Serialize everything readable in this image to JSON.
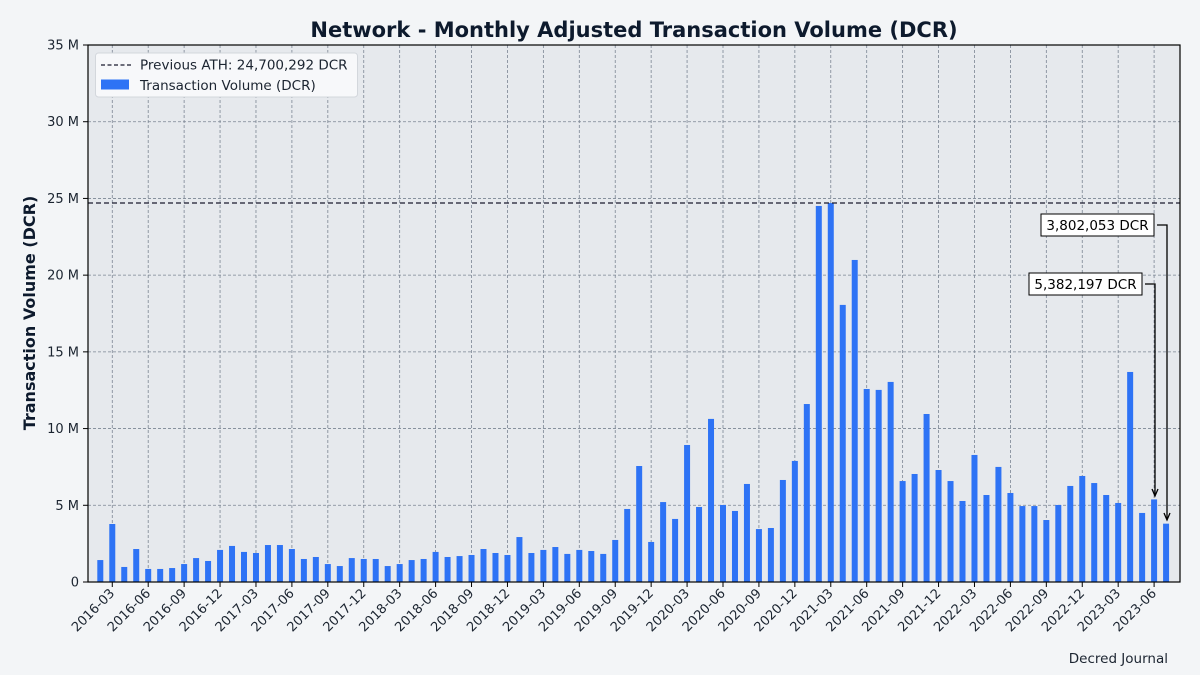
{
  "chart_data": {
    "type": "bar",
    "title": "Network - Monthly Adjusted Transaction Volume (DCR)",
    "xlabel": "",
    "ylabel": "Transaction Volume (DCR)",
    "ylim": [
      0,
      35000000
    ],
    "y_ticks": [
      "0",
      "5 M",
      "10 M",
      "15 M",
      "20 M",
      "25 M",
      "30 M",
      "35 M"
    ],
    "grid": true,
    "legend_position": "upper left",
    "legend": [
      {
        "label": "Previous ATH: 24,700,292 DCR",
        "style": "dashed-line",
        "color": "#1a1a2e"
      },
      {
        "label": "Transaction Volume (DCR)",
        "style": "bar",
        "color": "#2e73f5"
      }
    ],
    "reference_line": {
      "label": "Previous ATH: 24,700,292 DCR",
      "value": 24700292
    },
    "x_tick_labels": [
      "2016-03",
      "2016-06",
      "2016-09",
      "2016-12",
      "2017-03",
      "2017-06",
      "2017-09",
      "2017-12",
      "2018-03",
      "2018-06",
      "2018-09",
      "2018-12",
      "2019-03",
      "2019-06",
      "2019-09",
      "2019-12",
      "2020-03",
      "2020-06",
      "2020-09",
      "2020-12",
      "2021-03",
      "2021-06",
      "2021-09",
      "2021-12",
      "2022-03",
      "2022-06",
      "2022-09",
      "2022-12",
      "2023-03",
      "2023-06"
    ],
    "categories": [
      "2016-02",
      "2016-03",
      "2016-04",
      "2016-05",
      "2016-06",
      "2016-07",
      "2016-08",
      "2016-09",
      "2016-10",
      "2016-11",
      "2016-12",
      "2017-01",
      "2017-02",
      "2017-03",
      "2017-04",
      "2017-05",
      "2017-06",
      "2017-07",
      "2017-08",
      "2017-09",
      "2017-10",
      "2017-11",
      "2017-12",
      "2018-01",
      "2018-02",
      "2018-03",
      "2018-04",
      "2018-05",
      "2018-06",
      "2018-07",
      "2018-08",
      "2018-09",
      "2018-10",
      "2018-11",
      "2018-12",
      "2019-01",
      "2019-02",
      "2019-03",
      "2019-04",
      "2019-05",
      "2019-06",
      "2019-07",
      "2019-08",
      "2019-09",
      "2019-10",
      "2019-11",
      "2019-12",
      "2020-01",
      "2020-02",
      "2020-03",
      "2020-04",
      "2020-05",
      "2020-06",
      "2020-07",
      "2020-08",
      "2020-09",
      "2020-10",
      "2020-11",
      "2020-12",
      "2021-01",
      "2021-02",
      "2021-03",
      "2021-04",
      "2021-05",
      "2021-06",
      "2021-07",
      "2021-08",
      "2021-09",
      "2021-10",
      "2021-11",
      "2021-12",
      "2022-01",
      "2022-02",
      "2022-03",
      "2022-04",
      "2022-05",
      "2022-06",
      "2022-07",
      "2022-08",
      "2022-09",
      "2022-10",
      "2022-11",
      "2022-12",
      "2023-01",
      "2023-02",
      "2023-03",
      "2023-04",
      "2023-05",
      "2023-06",
      "2023-07"
    ],
    "series": [
      {
        "name": "Transaction Volume (DCR)",
        "color": "#2e73f5",
        "values": [
          1430000,
          3780000,
          980000,
          2150000,
          850000,
          850000,
          910000,
          1170000,
          1560000,
          1370000,
          2090000,
          2350000,
          1960000,
          1890000,
          2410000,
          2410000,
          2150000,
          1500000,
          1630000,
          1170000,
          1040000,
          1560000,
          1500000,
          1500000,
          1040000,
          1170000,
          1430000,
          1500000,
          1960000,
          1630000,
          1690000,
          1760000,
          2150000,
          1890000,
          1760000,
          2930000,
          1890000,
          2090000,
          2280000,
          1830000,
          2090000,
          2020000,
          1830000,
          2740000,
          4760000,
          7560000,
          2610000,
          5210000,
          4110000,
          8930000,
          4890000,
          10630000,
          5020000,
          4630000,
          6390000,
          3450000,
          3520000,
          6650000,
          7890000,
          11600000,
          24510000,
          24700292,
          18060000,
          20990000,
          12580000,
          12520000,
          13040000,
          6580000,
          7040000,
          10950000,
          7300000,
          6580000,
          5280000,
          8280000,
          5670000,
          7500000,
          5800000,
          4950000,
          4950000,
          4040000,
          5020000,
          6260000,
          6910000,
          6450000,
          5670000,
          5150000,
          13690000,
          4500000,
          5382197,
          3802053
        ]
      }
    ],
    "annotations": [
      {
        "text": "3,802,053 DCR",
        "category": "2023-07",
        "value": 3802053
      },
      {
        "text": "5,382,197 DCR",
        "category": "2023-06",
        "value": 5382197
      }
    ],
    "credit": "Decred Journal"
  },
  "colors": {
    "background": "#f3f5f7",
    "plot_background": "#e6e9ed",
    "bar": "#2e73f5",
    "grid": "#7b8593",
    "text": "#0d1a2d"
  }
}
